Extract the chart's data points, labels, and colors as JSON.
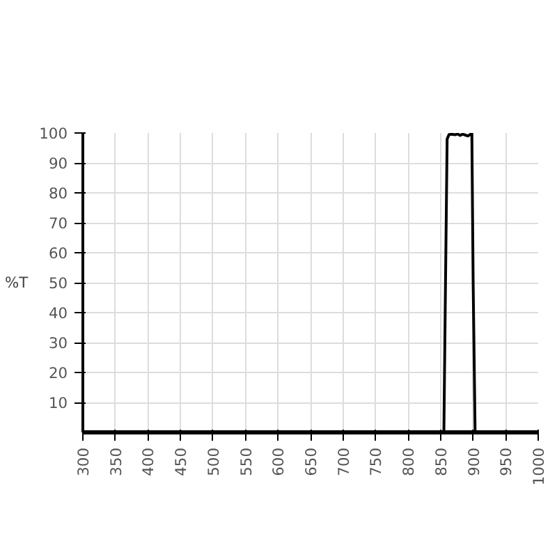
{
  "chart_data": {
    "type": "line",
    "ylabel": "%T",
    "series": [
      {
        "color": "#000000",
        "x": [
          300,
          855,
          857,
          860,
          863,
          868,
          872,
          876,
          880,
          884,
          888,
          892,
          896,
          898,
          900,
          903,
          1000
        ],
        "values": [
          0,
          0,
          40,
          98,
          99.5,
          99.6,
          99.4,
          99.7,
          99.2,
          99.6,
          99.3,
          99.0,
          99.6,
          99.8,
          50,
          0,
          0
        ]
      }
    ],
    "xlim": [
      300,
      1000
    ],
    "xticks": [
      300,
      350,
      400,
      450,
      500,
      550,
      600,
      650,
      700,
      750,
      800,
      850,
      900,
      950,
      1000
    ],
    "ylim": [
      0,
      100
    ],
    "yticks": [
      10,
      20,
      30,
      40,
      50,
      60,
      70,
      80,
      90,
      100
    ],
    "grid": true,
    "marker": "none",
    "line_style": "solid"
  }
}
